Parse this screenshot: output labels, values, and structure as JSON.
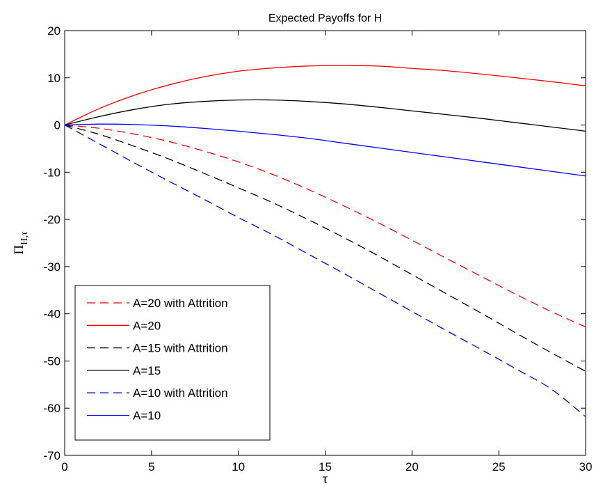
{
  "chart_data": {
    "type": "line",
    "title": "Expected Payoffs for H",
    "xlabel": "τ",
    "ylabel": {
      "main": "Π",
      "sub": "H,τ"
    },
    "xlim": [
      0,
      30
    ],
    "ylim": [
      -70,
      20
    ],
    "xticks": [
      0,
      5,
      10,
      15,
      20,
      25,
      30
    ],
    "yticks": [
      -70,
      -60,
      -50,
      -40,
      -30,
      -20,
      -10,
      0,
      10,
      20
    ],
    "grid": false,
    "legend_position": "bottom-left",
    "series": [
      {
        "name": "A=20 with Attrition",
        "color": "#ff0000",
        "dash": "dashed",
        "x": [
          0,
          2,
          4,
          6,
          8,
          10,
          12,
          14,
          16,
          18,
          20,
          22,
          24,
          26,
          28,
          30
        ],
        "y": [
          0,
          -0.7,
          -1.9,
          -3.5,
          -5.5,
          -7.8,
          -10.5,
          -13.6,
          -17.0,
          -20.6,
          -24.4,
          -28.3,
          -32.1,
          -35.9,
          -39.5,
          -42.8
        ]
      },
      {
        "name": "A=20",
        "color": "#ff0000",
        "dash": "solid",
        "x": [
          0,
          2,
          4,
          6,
          8,
          10,
          12,
          14,
          16,
          18,
          20,
          22,
          24,
          26,
          28,
          30
        ],
        "y": [
          0,
          3.5,
          6.3,
          8.5,
          10.2,
          11.4,
          12.1,
          12.5,
          12.6,
          12.5,
          12.0,
          11.5,
          10.8,
          10.0,
          9.2,
          8.3
        ]
      },
      {
        "name": "A=15 with Attrition",
        "color": "#000000",
        "dash": "dashed",
        "x": [
          0,
          2,
          4,
          6,
          8,
          10,
          12,
          14,
          16,
          18,
          20,
          22,
          24,
          26,
          28,
          30
        ],
        "y": [
          0,
          -2.0,
          -4.5,
          -7.2,
          -10.2,
          -13.3,
          -16.5,
          -20.0,
          -23.7,
          -27.6,
          -31.7,
          -35.8,
          -39.9,
          -44.1,
          -48.2,
          -52.2
        ]
      },
      {
        "name": "A=15",
        "color": "#000000",
        "dash": "solid",
        "x": [
          0,
          2,
          4,
          6,
          8,
          10,
          12,
          14,
          16,
          18,
          20,
          22,
          24,
          26,
          28,
          30
        ],
        "y": [
          0,
          1.8,
          3.3,
          4.4,
          5.0,
          5.3,
          5.3,
          5.0,
          4.5,
          3.8,
          3.0,
          2.2,
          1.4,
          0.5,
          -0.4,
          -1.3
        ]
      },
      {
        "name": "A=10 with Attrition",
        "color": "#0000ff",
        "dash": "dashed",
        "x": [
          0,
          2,
          4,
          6,
          8,
          10,
          12,
          14,
          16,
          18,
          20,
          22,
          24,
          26,
          28,
          30
        ],
        "y": [
          0,
          -4.0,
          -8.0,
          -11.9,
          -15.7,
          -19.6,
          -23.3,
          -27.3,
          -31.3,
          -35.4,
          -39.5,
          -43.6,
          -47.6,
          -51.7,
          -55.9,
          -61.8
        ]
      },
      {
        "name": "A=10",
        "color": "#0000ff",
        "dash": "solid",
        "x": [
          0,
          2,
          4,
          6,
          8,
          10,
          12,
          14,
          16,
          18,
          20,
          22,
          24,
          26,
          28,
          30
        ],
        "y": [
          0,
          0.2,
          0.1,
          -0.2,
          -0.7,
          -1.3,
          -2.0,
          -2.8,
          -3.8,
          -4.8,
          -5.8,
          -6.8,
          -7.8,
          -8.8,
          -9.8,
          -10.8
        ]
      }
    ]
  }
}
